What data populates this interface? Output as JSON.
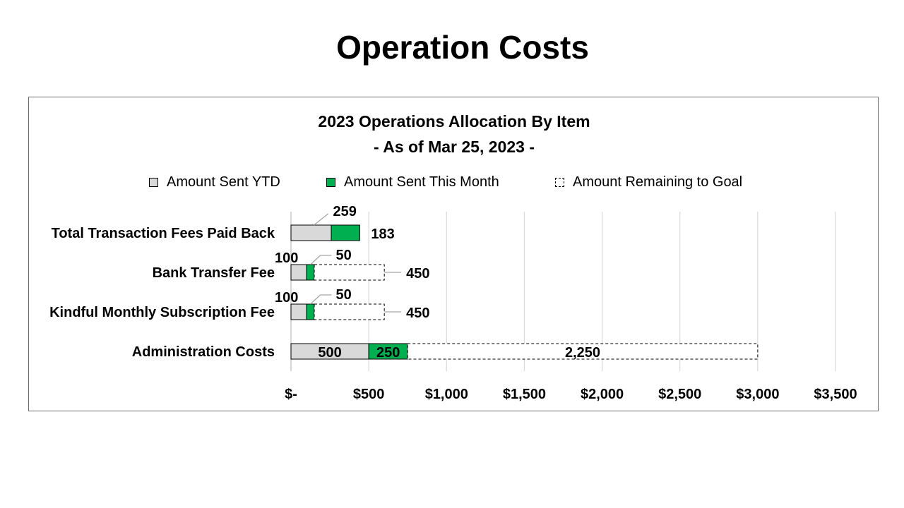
{
  "slide": {
    "title": "Operation Costs"
  },
  "chart_data": {
    "type": "bar",
    "orientation": "horizontal",
    "stacked": true,
    "title": "2023 Operations Allocation By Item",
    "subtitle": "- As of Mar 25, 2023 -",
    "categories": [
      "Total Transaction Fees Paid Back",
      "Bank Transfer Fee",
      "Kindful Monthly Subscription Fee",
      "Administration Costs"
    ],
    "series": [
      {
        "name": "Amount Sent YTD",
        "values": [
          259,
          100,
          100,
          500
        ],
        "labels": [
          "259",
          "100",
          "100",
          "500"
        ],
        "color": "#d9d9d9"
      },
      {
        "name": "Amount Sent This Month",
        "values": [
          183,
          50,
          50,
          250
        ],
        "labels": [
          "183",
          "50",
          "50",
          "250"
        ],
        "color": "#00b050"
      },
      {
        "name": "Amount Remaining to Goal",
        "values": [
          0,
          450,
          450,
          2250
        ],
        "labels": [
          "",
          "450",
          "450",
          "2,250"
        ],
        "color": "#ffffff",
        "border": "dashed"
      }
    ],
    "xlim": [
      0,
      3500
    ],
    "xticks": [
      0,
      500,
      1000,
      1500,
      2000,
      2500,
      3000,
      3500
    ],
    "xtick_labels": [
      "$-",
      "$500",
      "$1,000",
      "$1,500",
      "$2,000",
      "$2,500",
      "$3,000",
      "$3,500"
    ],
    "grid": "vertical",
    "legend_position": "top"
  }
}
